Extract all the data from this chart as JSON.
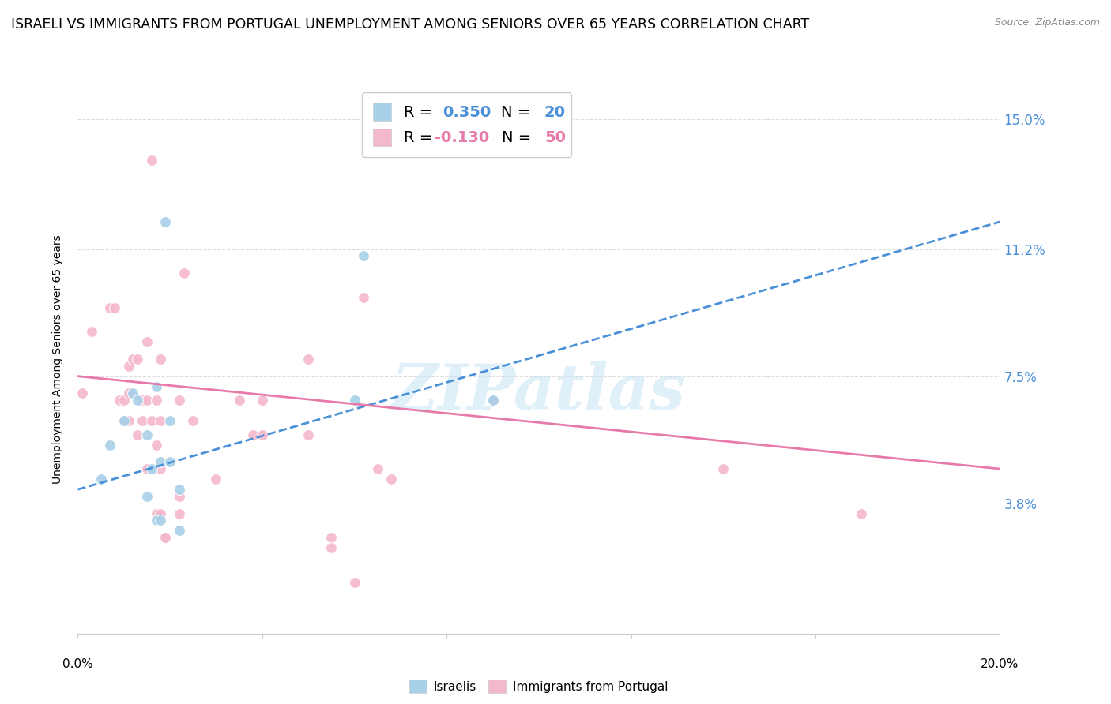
{
  "title": "ISRAELI VS IMMIGRANTS FROM PORTUGAL UNEMPLOYMENT AMONG SENIORS OVER 65 YEARS CORRELATION CHART",
  "source": "Source: ZipAtlas.com",
  "ylabel": "Unemployment Among Seniors over 65 years",
  "xlim": [
    0.0,
    0.2
  ],
  "ylim": [
    0.0,
    0.16
  ],
  "yticks": [
    0.038,
    0.075,
    0.112,
    0.15
  ],
  "ytick_labels": [
    "3.8%",
    "7.5%",
    "11.2%",
    "15.0%"
  ],
  "legend_R_israeli": "0.350",
  "legend_N_israeli": "20",
  "legend_R_portugal": "-0.130",
  "legend_N_portugal": "50",
  "watermark": "ZIPatlas",
  "israeli_scatter": [
    [
      0.005,
      0.045
    ],
    [
      0.007,
      0.055
    ],
    [
      0.01,
      0.062
    ],
    [
      0.012,
      0.07
    ],
    [
      0.013,
      0.068
    ],
    [
      0.015,
      0.058
    ],
    [
      0.015,
      0.04
    ],
    [
      0.016,
      0.048
    ],
    [
      0.017,
      0.072
    ],
    [
      0.017,
      0.033
    ],
    [
      0.018,
      0.033
    ],
    [
      0.018,
      0.05
    ],
    [
      0.019,
      0.12
    ],
    [
      0.02,
      0.062
    ],
    [
      0.02,
      0.05
    ],
    [
      0.022,
      0.042
    ],
    [
      0.022,
      0.03
    ],
    [
      0.06,
      0.068
    ],
    [
      0.062,
      0.11
    ],
    [
      0.09,
      0.068
    ]
  ],
  "portugal_scatter": [
    [
      0.001,
      0.07
    ],
    [
      0.003,
      0.088
    ],
    [
      0.007,
      0.095
    ],
    [
      0.008,
      0.095
    ],
    [
      0.009,
      0.068
    ],
    [
      0.01,
      0.068
    ],
    [
      0.01,
      0.062
    ],
    [
      0.011,
      0.078
    ],
    [
      0.011,
      0.062
    ],
    [
      0.011,
      0.07
    ],
    [
      0.012,
      0.08
    ],
    [
      0.013,
      0.058
    ],
    [
      0.013,
      0.08
    ],
    [
      0.014,
      0.062
    ],
    [
      0.014,
      0.068
    ],
    [
      0.015,
      0.085
    ],
    [
      0.015,
      0.068
    ],
    [
      0.015,
      0.048
    ],
    [
      0.016,
      0.138
    ],
    [
      0.016,
      0.062
    ],
    [
      0.017,
      0.068
    ],
    [
      0.017,
      0.055
    ],
    [
      0.017,
      0.035
    ],
    [
      0.018,
      0.08
    ],
    [
      0.018,
      0.048
    ],
    [
      0.018,
      0.062
    ],
    [
      0.018,
      0.035
    ],
    [
      0.019,
      0.028
    ],
    [
      0.019,
      0.028
    ],
    [
      0.022,
      0.04
    ],
    [
      0.022,
      0.035
    ],
    [
      0.022,
      0.068
    ],
    [
      0.023,
      0.105
    ],
    [
      0.025,
      0.062
    ],
    [
      0.03,
      0.045
    ],
    [
      0.035,
      0.068
    ],
    [
      0.038,
      0.058
    ],
    [
      0.04,
      0.068
    ],
    [
      0.04,
      0.058
    ],
    [
      0.05,
      0.08
    ],
    [
      0.05,
      0.058
    ],
    [
      0.055,
      0.028
    ],
    [
      0.055,
      0.025
    ],
    [
      0.06,
      0.015
    ],
    [
      0.062,
      0.098
    ],
    [
      0.065,
      0.048
    ],
    [
      0.068,
      0.045
    ],
    [
      0.09,
      0.068
    ],
    [
      0.14,
      0.048
    ],
    [
      0.17,
      0.035
    ]
  ],
  "israeli_line_x": [
    0.0,
    0.2
  ],
  "israeli_line_y": [
    0.042,
    0.12
  ],
  "portugal_line_x": [
    0.0,
    0.2
  ],
  "portugal_line_y": [
    0.075,
    0.048
  ],
  "scatter_size": 100,
  "israeli_color": "#a8d0e8",
  "portugal_color": "#f4b8cc",
  "israeli_line_color": "#4a90d9",
  "portugal_line_color": "#e87aaa",
  "background_color": "#ffffff",
  "grid_color": "#dddddd",
  "title_fontsize": 12.5,
  "axis_label_fontsize": 10,
  "legend_fontsize": 14,
  "tick_label_fontsize": 12
}
